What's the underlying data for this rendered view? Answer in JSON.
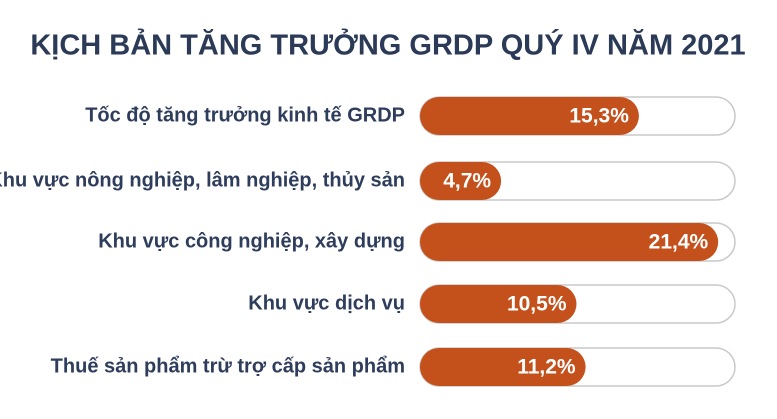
{
  "chart_data": {
    "type": "bar",
    "title": "KỊCH BẢN TĂNG TRƯỞNG GRDP QUÝ IV NĂM 2021",
    "categories": [
      "Tốc độ tăng trưởng kinh tế GRDP",
      "Khu vực nông nghiệp, lâm nghiệp, thủy sản",
      "Khu vực công nghiệp, xây dựng",
      "Khu vực dịch vụ",
      "Thuế sản phẩm trừ trợ cấp sản phẩm"
    ],
    "values": [
      15.3,
      4.7,
      21.4,
      10.5,
      11.2
    ],
    "value_labels": [
      "15,3%",
      "4,7%",
      "21,4%",
      "10,5%",
      "11,2%"
    ],
    "color": "#c4501b"
  }
}
